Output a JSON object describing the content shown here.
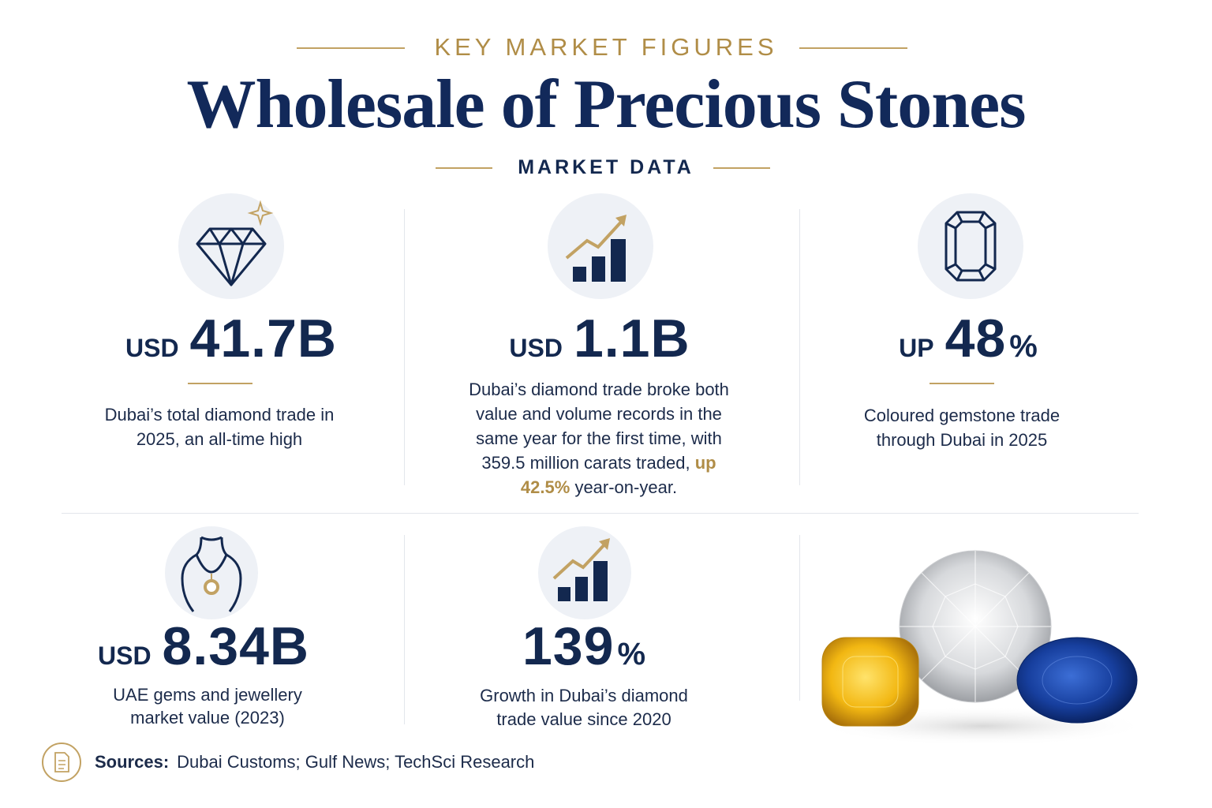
{
  "header": {
    "eyebrow": "KEY MARKET FIGURES",
    "title": "Wholesale of Precious Stones",
    "subtitle": "MARKET DATA"
  },
  "stats": [
    {
      "prefix": "USD",
      "value": "41.7B",
      "description": "Dubai’s total diamond trade in 2025, an all-time high"
    },
    {
      "prefix": "USD",
      "value": "1.1B",
      "description": "Dubai’s diamond trade broke both value and volume records in the same year for the first time, with 359.5 million carats traded,",
      "highlight": "up 42.5%",
      "description_end": "year-on-year."
    },
    {
      "prefix": "UP",
      "value": "48",
      "suffix": "%",
      "description": "Coloured gemstone trade through Dubai in 2025"
    },
    {
      "prefix": "USD",
      "value": "8.34B",
      "description": "UAE gems and jewellery market value (2023)"
    },
    {
      "value": "139",
      "suffix": "%",
      "description": "Growth in Dubai’s diamond trade value since 2020"
    }
  ],
  "sources": {
    "label": "Sources:",
    "text": "Dubai Customs; Gulf News; TechSci Research"
  }
}
